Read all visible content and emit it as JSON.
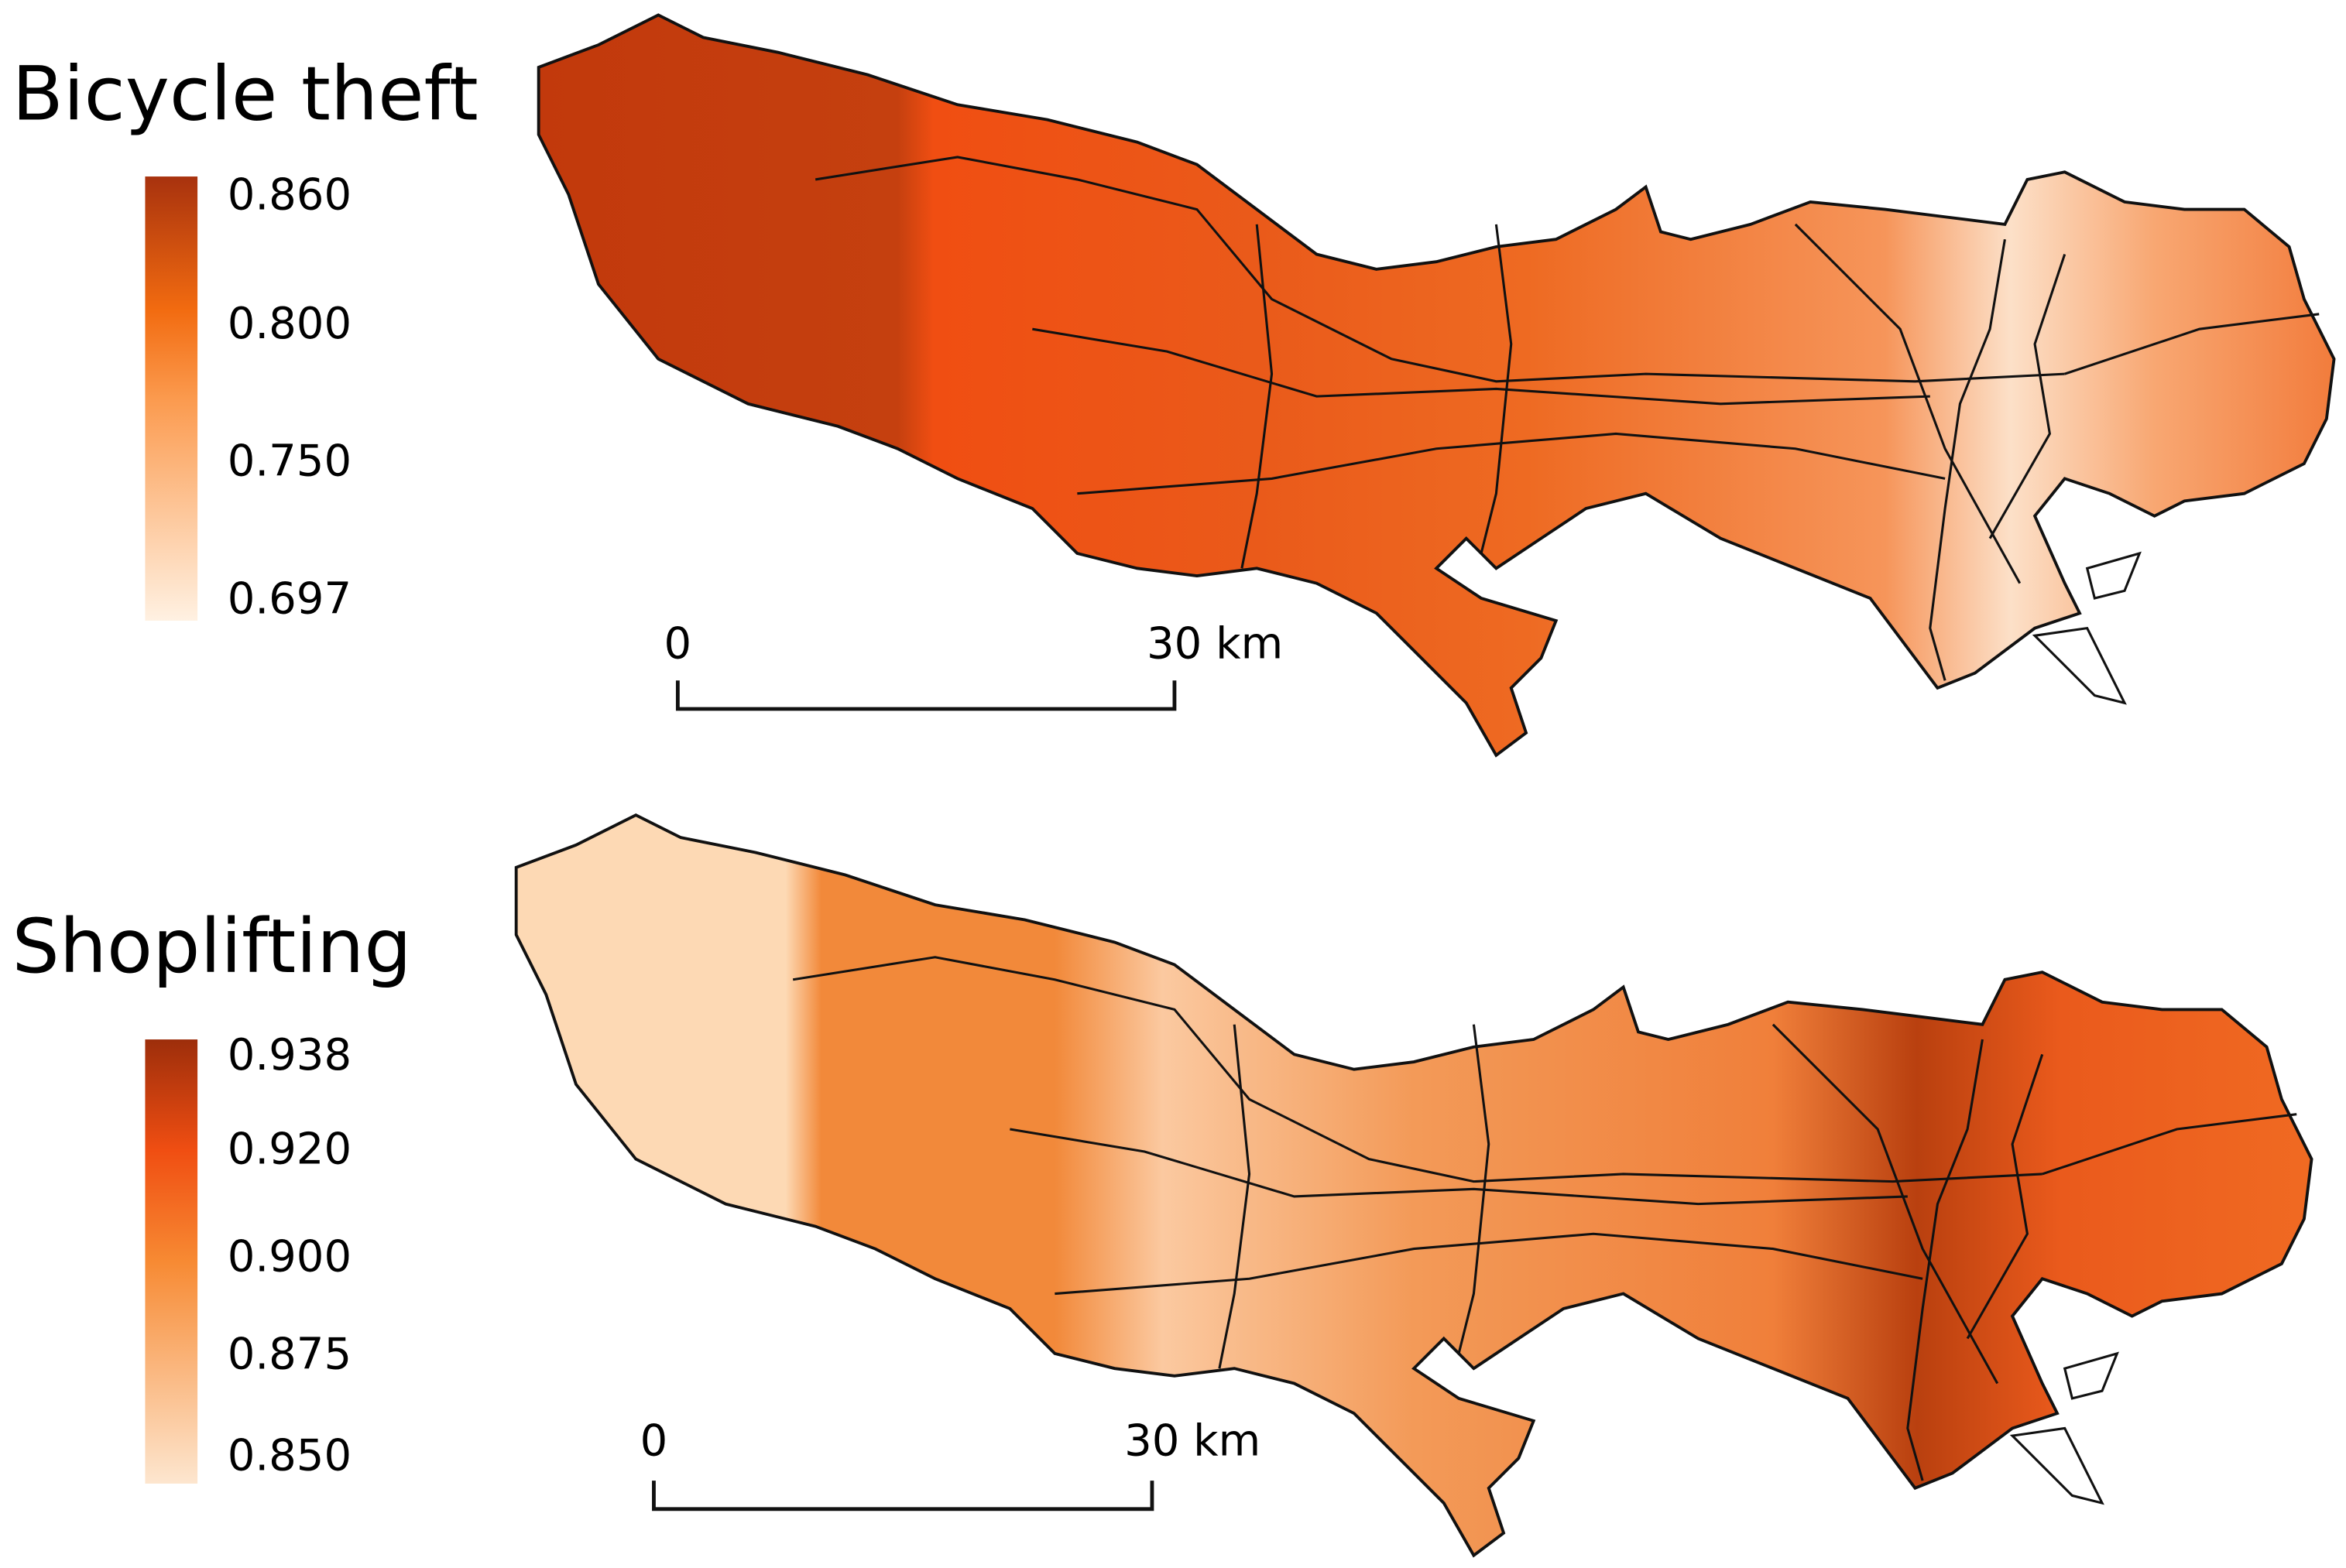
{
  "maps": [
    {
      "title": "Bicycle theft",
      "legend": {
        "ticks": [
          "0.860",
          "0.800",
          "0.750",
          "0.697"
        ]
      },
      "scalebar": {
        "start": "0",
        "end": "30 km"
      }
    },
    {
      "title": "Shoplifting",
      "legend": {
        "ticks": [
          "0.938",
          "0.920",
          "0.900",
          "0.875",
          "0.850"
        ]
      },
      "scalebar": {
        "start": "0",
        "end": "30 km"
      }
    }
  ]
}
